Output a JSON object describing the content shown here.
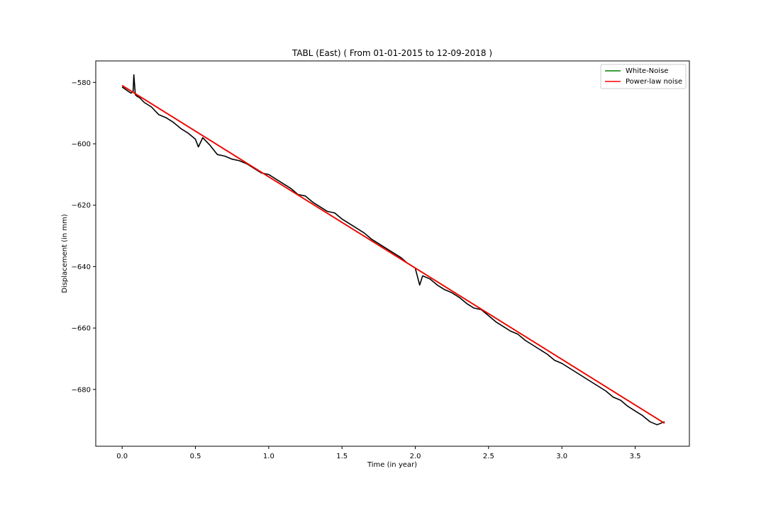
{
  "chart_data": {
    "type": "line",
    "title": "TABL (East) ( From 01-01-2015 to 12-09-2018 )",
    "xlabel": "Time (in year)",
    "ylabel": "Displacement (in mm)",
    "xlim": [
      -0.18,
      3.87
    ],
    "ylim": [
      -698.5,
      -573
    ],
    "xticks": [
      0.0,
      0.5,
      1.0,
      1.5,
      2.0,
      2.5,
      3.0,
      3.5
    ],
    "xtick_labels": [
      "0.0",
      "0.5",
      "1.0",
      "1.5",
      "2.0",
      "2.5",
      "3.0",
      "3.5"
    ],
    "yticks": [
      -580,
      -600,
      -620,
      -640,
      -660,
      -680
    ],
    "ytick_labels": [
      "−580",
      "−600",
      "−620",
      "−640",
      "−660",
      "−680"
    ],
    "grid": false,
    "legend": {
      "location": "upper right",
      "entries": [
        {
          "name": "White-Noise",
          "color": "#008000"
        },
        {
          "name": "Power-law noise",
          "color": "#ff0000"
        }
      ]
    },
    "series": [
      {
        "role": "observed",
        "color": "#000000",
        "x": [
          0.0,
          0.03,
          0.06,
          0.075,
          0.08,
          0.09,
          0.1,
          0.12,
          0.15,
          0.2,
          0.25,
          0.3,
          0.35,
          0.4,
          0.45,
          0.5,
          0.52,
          0.55,
          0.6,
          0.65,
          0.7,
          0.75,
          0.8,
          0.85,
          0.9,
          0.95,
          1.0,
          1.05,
          1.1,
          1.15,
          1.2,
          1.25,
          1.3,
          1.35,
          1.4,
          1.45,
          1.5,
          1.55,
          1.6,
          1.65,
          1.7,
          1.75,
          1.8,
          1.85,
          1.9,
          1.95,
          2.0,
          2.03,
          2.05,
          2.1,
          2.15,
          2.2,
          2.25,
          2.3,
          2.35,
          2.4,
          2.45,
          2.5,
          2.55,
          2.6,
          2.65,
          2.7,
          2.75,
          2.8,
          2.85,
          2.9,
          2.95,
          3.0,
          3.05,
          3.1,
          3.15,
          3.2,
          3.25,
          3.3,
          3.35,
          3.4,
          3.45,
          3.5,
          3.55,
          3.6,
          3.65,
          3.7
        ],
        "y": [
          -581.5,
          -582.5,
          -583.5,
          -583.0,
          -577.5,
          -584.0,
          -584.5,
          -585.0,
          -586.5,
          -588.0,
          -590.5,
          -591.5,
          -593.0,
          -595.0,
          -596.5,
          -598.5,
          -601.0,
          -598.0,
          -600.5,
          -603.5,
          -604.0,
          -605.0,
          -605.5,
          -606.5,
          -608.0,
          -609.5,
          -610.0,
          -611.5,
          -613.0,
          -614.5,
          -616.5,
          -617.0,
          -619.0,
          -620.5,
          -622.0,
          -622.5,
          -624.5,
          -626.0,
          -627.5,
          -629.0,
          -631.0,
          -632.5,
          -634.0,
          -635.5,
          -637.0,
          -639.0,
          -640.5,
          -646.0,
          -643.0,
          -644.0,
          -646.0,
          -647.5,
          -648.5,
          -650.0,
          -652.0,
          -653.5,
          -654.0,
          -656.0,
          -658.0,
          -659.5,
          -661.0,
          -662.0,
          -664.0,
          -665.5,
          -667.0,
          -668.5,
          -670.5,
          -671.5,
          -673.0,
          -674.5,
          -676.0,
          -677.5,
          -679.0,
          -680.5,
          -682.5,
          -683.5,
          -685.5,
          -687.0,
          -688.5,
          -690.5,
          -691.5,
          -690.5
        ]
      },
      {
        "name": "White-Noise",
        "color": "#008000",
        "x": [
          0.0,
          3.7
        ],
        "y": [
          -581.0,
          -691.0
        ]
      },
      {
        "name": "Power-law noise",
        "color": "#ff0000",
        "x": [
          0.0,
          3.7
        ],
        "y": [
          -581.0,
          -691.0
        ]
      }
    ]
  }
}
